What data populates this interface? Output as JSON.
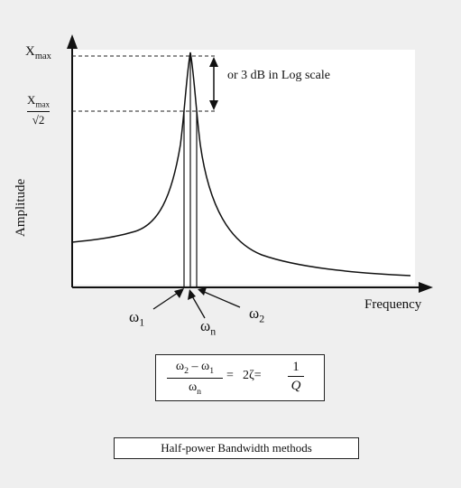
{
  "diagram": {
    "y_axis_label": "Amplitude",
    "x_axis_label": "Frequency",
    "peak_label": "X",
    "peak_label_sub": "max",
    "half_power_num": "X",
    "half_power_num_sub": "max",
    "half_power_den": "√2",
    "db_note": "or 3 dB in Log scale",
    "omega_1": "ω",
    "omega_1_sub": "1",
    "omega_n": "ω",
    "omega_n_sub": "n",
    "omega_2": "ω",
    "omega_2_sub": "2"
  },
  "formula": {
    "numerator_a": "ω",
    "numerator_a_sub": "2",
    "numerator_op": " – ω",
    "numerator_b_sub": "1",
    "denominator": "ω",
    "denominator_sub": "n",
    "eq1": "=",
    "middle": "2ζ=",
    "frac2_num": "1",
    "frac2_den": "Q"
  },
  "method_label": "Half-power Bandwidth methods",
  "colors": {
    "background": "#efefef",
    "plot_area": "#ffffff",
    "ink": "#111111"
  }
}
